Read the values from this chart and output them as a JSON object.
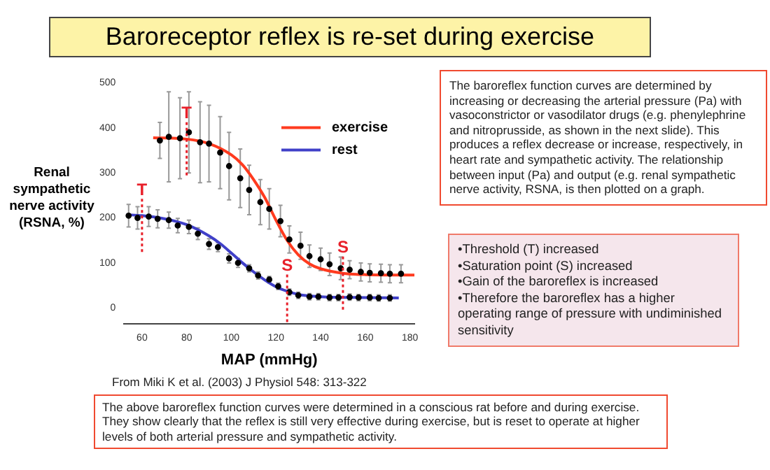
{
  "chart_data": {
    "type": "line",
    "title": "Baroreceptor reflex is re-set during exercise",
    "xlabel": "MAP (mmHg)",
    "ylabel": "Renal sympathetic nerve activity (RSNA, %)",
    "xlim": [
      52,
      182
    ],
    "xticks": [
      60,
      80,
      100,
      120,
      140,
      160,
      180
    ],
    "ylim": [
      -35,
      500
    ],
    "yticks": [
      0,
      100,
      200,
      300,
      400,
      500
    ],
    "grid": false,
    "legend": "top right",
    "series": [
      {
        "name": "exercise",
        "marker": "none",
        "color": "#ff3b1f",
        "x": [
          65,
          80,
          90,
          100,
          105,
          110,
          115,
          120,
          125,
          130,
          135,
          140,
          150,
          160,
          182
        ],
        "values": [
          378,
          375,
          365,
          340,
          318,
          285,
          245,
          195,
          150,
          118,
          98,
          87,
          77,
          74,
          73
        ]
      },
      {
        "name": "rest",
        "marker": "none",
        "color": "#4040c8",
        "x": [
          53,
          60,
          70,
          80,
          90,
          95,
          100,
          105,
          110,
          115,
          120,
          125,
          130,
          140,
          160,
          175
        ],
        "values": [
          207,
          205,
          198,
          185,
          160,
          143,
          122,
          100,
          80,
          62,
          47,
          37,
          30,
          25,
          23,
          22
        ]
      },
      {
        "type": "scatter",
        "marker": "circle",
        "color": "#000000",
        "x": [
          68,
          72,
          77,
          81,
          86,
          90,
          95,
          99,
          104,
          108,
          113,
          117,
          122,
          126,
          131,
          135,
          140,
          144,
          149,
          153,
          158,
          162,
          167,
          171,
          176
        ],
        "values": [
          372,
          380,
          377,
          390,
          368,
          365,
          345,
          315,
          288,
          262,
          235,
          220,
          193,
          152,
          138,
          115,
          108,
          97,
          88,
          85,
          80,
          78,
          77,
          76,
          76
        ],
        "errors": [
          40,
          100,
          90,
          90,
          90,
          85,
          80,
          75,
          65,
          55,
          50,
          45,
          35,
          30,
          30,
          25,
          25,
          25,
          25,
          20,
          20,
          20,
          20,
          20,
          20
        ]
      },
      {
        "type": "scatter",
        "marker": "circle",
        "color": "#000000",
        "x": [
          54,
          58,
          63,
          67,
          72,
          76,
          81,
          85,
          90,
          94,
          99,
          103,
          108,
          112,
          117,
          121,
          126,
          130,
          135,
          139,
          144,
          148,
          153,
          157,
          162,
          166,
          171
        ],
        "values": [
          205,
          200,
          203,
          198,
          195,
          183,
          180,
          165,
          142,
          135,
          110,
          100,
          88,
          72,
          63,
          48,
          35,
          28,
          25,
          25,
          23,
          23,
          24,
          23,
          23,
          22,
          22
        ],
        "errors": [
          25,
          25,
          22,
          20,
          18,
          16,
          15,
          13,
          12,
          10,
          10,
          10,
          8,
          8,
          7,
          7,
          7,
          7,
          7,
          7,
          7,
          7,
          7,
          7,
          7,
          7,
          7
        ]
      }
    ],
    "annotations": [
      {
        "text": "T",
        "x": 80,
        "y": 375
      },
      {
        "text": "T",
        "x": 60,
        "y": 205
      },
      {
        "text": "S",
        "x": 125,
        "y": 37
      },
      {
        "text": "S",
        "x": 150,
        "y": 77
      },
      "The baroreflex function curves are determined by increasing or decreasing the arterial pressure (Pa) with vasoconstrictor or vasodilator drugs (e.g. phenylephrine and nitroprusside, as shown in the next slide). This produces a reflex decrease or increase, respectively, in heart rate and sympathetic activity. The relationship between input (Pa) and output (e.g. renal sympathetic nerve activity, RSNA, is then plotted on a graph.",
      "•Threshold (T) increased",
      "•Saturation point (S) increased",
      "•Gain of the baroreflex is increased",
      "•Therefore the baroreflex has a higher operating range of pressure with undiminished sensitivity",
      "From Miki K et al. (2003) J Physiol 548: 313-322",
      "The above baroreflex function curves were determined in a conscious rat before and during exercise.  They show clearly that the reflex is still very effective during exercise, but is reset to operate at higher levels of both arterial pressure and sympathetic activity."
    ]
  }
}
